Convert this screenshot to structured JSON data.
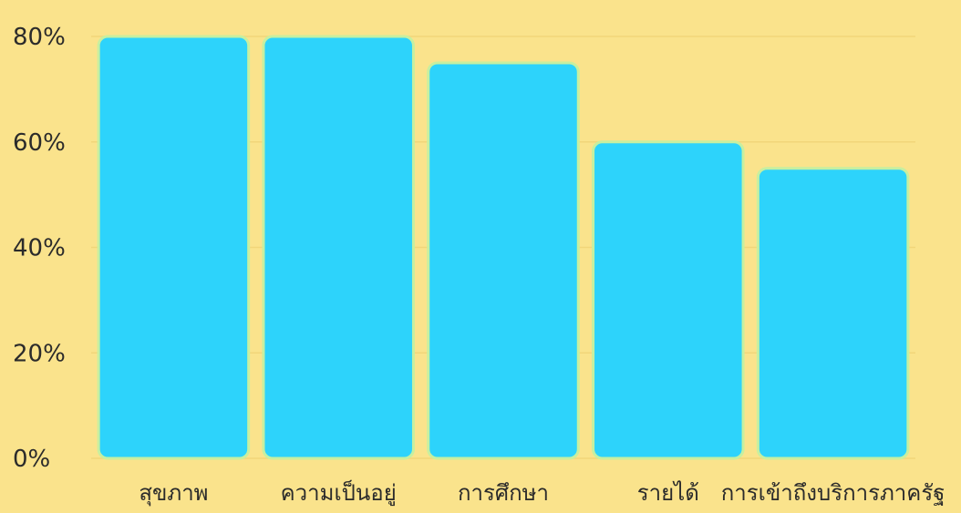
{
  "chart_data": {
    "type": "bar",
    "categories": [
      "สุขภาพ",
      "ความเป็นอยู่",
      "การศึกษา",
      "รายได้",
      "การเข้าถึงบริการภาครัฐ"
    ],
    "values": [
      80,
      80,
      75,
      60,
      55
    ],
    "ylim": [
      0,
      80
    ],
    "yticks": [
      0,
      20,
      40,
      60,
      80
    ],
    "ytick_labels": [
      "0%",
      "20%",
      "40%",
      "60%",
      "80%"
    ],
    "title": "",
    "xlabel": "",
    "ylabel": "",
    "grid": true,
    "colors": {
      "background": "#FAE38C",
      "bar": "#2DD3FB",
      "bar_outline": "#C7EFA0",
      "grid": "#F1D67A",
      "text": "#2b2b2b"
    }
  }
}
